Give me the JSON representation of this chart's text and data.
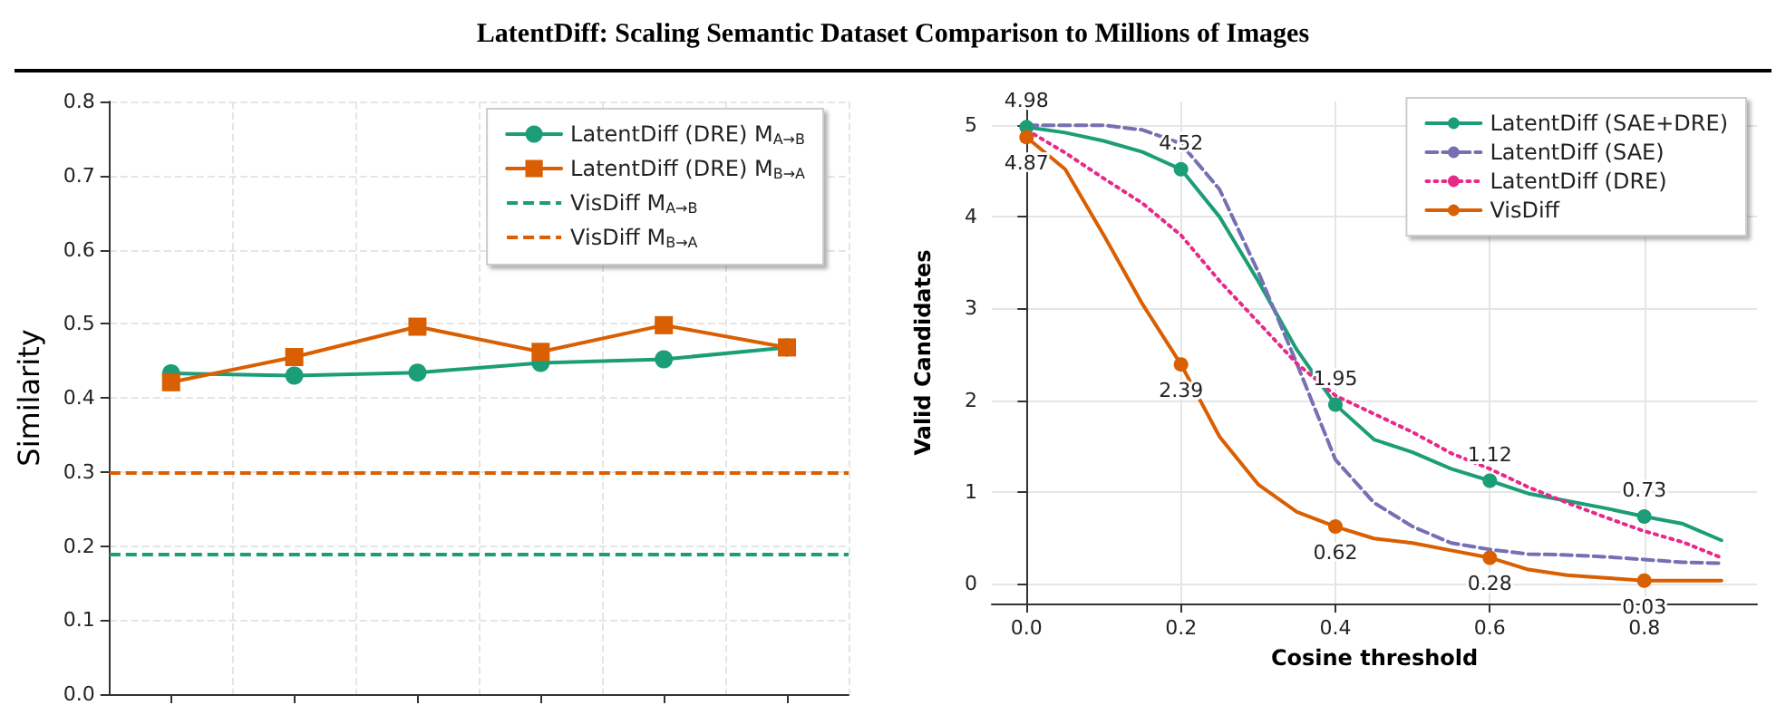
{
  "chart_data": [
    {
      "type": "line",
      "title": "LatentDiff: Scaling Semantic Dataset Comparison to Millions of Images",
      "ylabel": "Similarity",
      "categories": [
        null,
        null,
        null,
        null,
        null,
        null
      ],
      "ylim": [
        0,
        0.8
      ],
      "yticks": [
        {
          "value": 0,
          "label": "0.0"
        },
        {
          "value": 0.1,
          "label": "0.1"
        },
        {
          "value": 0.2,
          "label": "0.2"
        },
        {
          "value": 0.3,
          "label": "0.3"
        },
        {
          "value": 0.4,
          "label": "0.4"
        },
        {
          "value": 0.5,
          "label": "0.5"
        },
        {
          "value": 0.6,
          "label": "0.6"
        },
        {
          "value": 0.7,
          "label": "0.7"
        },
        {
          "value": 0.8,
          "label": "0.8"
        }
      ],
      "tick_labels": "y",
      "grid": true,
      "legend": "top right",
      "series": [
        {
          "name": "LatentDiff (DRE) M$_{A→B}$",
          "color": "#1b9e77",
          "marker": "circle",
          "values": [
            0.433,
            0.43,
            0.434,
            0.447,
            0.452,
            0.468
          ]
        },
        {
          "name": "LatentDiff (DRE) M$_{B→A}$",
          "color": "#d95f02",
          "marker": "square",
          "values": [
            0.421,
            0.455,
            0.496,
            0.462,
            0.498,
            0.468
          ]
        }
      ],
      "ref_lines": [
        {
          "axis": "y",
          "value": 0.19,
          "label": "VisDiff M$_{A→B}$",
          "color": "#1b9e77",
          "line_style": "dashed"
        },
        {
          "axis": "y",
          "value": 0.3,
          "label": "VisDiff M$_{B→A}$",
          "color": "#d95f02",
          "line_style": "dashed"
        }
      ]
    },
    {
      "type": "line",
      "xlabel": "Cosine threshold",
      "ylabel": "Valid Candidates",
      "x": [
        0,
        0.05,
        0.1,
        0.15,
        0.2,
        0.25,
        0.3,
        0.35,
        0.4,
        0.45,
        0.5,
        0.55,
        0.6,
        0.65,
        0.7,
        0.75,
        0.8,
        0.85,
        0.9
      ],
      "xlim": [
        -0.045,
        0.946
      ],
      "xticks": [
        {
          "value": 0,
          "label": "0.0"
        },
        {
          "value": 0.2,
          "label": "0.2"
        },
        {
          "value": 0.4,
          "label": "0.4"
        },
        {
          "value": 0.6,
          "label": "0.6"
        },
        {
          "value": 0.8,
          "label": "0.8"
        }
      ],
      "ylim": [
        -0.22,
        5.26
      ],
      "yticks": [
        0,
        1,
        2,
        3,
        4,
        5
      ],
      "grid": true,
      "legend": "top right",
      "series": [
        {
          "name": "LatentDiff (SAE+DRE)",
          "color": "#1b9e77",
          "line_style": "solid",
          "values": [
            4.98,
            4.92,
            4.83,
            4.71,
            4.52,
            4.0,
            3.3,
            2.55,
            1.95,
            1.57,
            1.43,
            1.25,
            1.12,
            0.98,
            0.9,
            0.82,
            0.73,
            0.65,
            0.47
          ],
          "value_labels": [
            "4.98",
            null,
            null,
            null,
            "4.52",
            null,
            null,
            null,
            "1.95",
            null,
            null,
            null,
            "1.12",
            null,
            null,
            null,
            "0.73",
            null,
            null
          ]
        },
        {
          "name": "LatentDiff (SAE)",
          "color": "#7570b3",
          "line_style": "dashed",
          "values": [
            5.0,
            5.0,
            5.0,
            4.95,
            4.8,
            4.3,
            3.4,
            2.4,
            1.35,
            0.88,
            0.62,
            0.44,
            0.37,
            0.32,
            0.31,
            0.29,
            0.26,
            0.23,
            0.22
          ]
        },
        {
          "name": "LatentDiff (DRE)",
          "color": "#e7298a",
          "line_style": "dotted",
          "values": [
            4.95,
            4.7,
            4.42,
            4.15,
            3.8,
            3.3,
            2.85,
            2.4,
            2.05,
            1.85,
            1.65,
            1.42,
            1.25,
            1.05,
            0.88,
            0.72,
            0.57,
            0.45,
            0.28
          ]
        },
        {
          "name": "VisDiff",
          "color": "#d95f02",
          "line_style": "solid",
          "values": [
            4.87,
            4.52,
            3.8,
            3.05,
            2.39,
            1.6,
            1.08,
            0.78,
            0.62,
            0.49,
            0.44,
            0.36,
            0.28,
            0.15,
            0.09,
            0.06,
            0.03,
            0.03,
            0.03
          ],
          "value_labels": [
            "4.87",
            null,
            null,
            null,
            "2.39",
            null,
            null,
            null,
            "0.62",
            null,
            null,
            null,
            "0.28",
            null,
            null,
            null,
            "0.03",
            null,
            null
          ]
        }
      ]
    }
  ]
}
